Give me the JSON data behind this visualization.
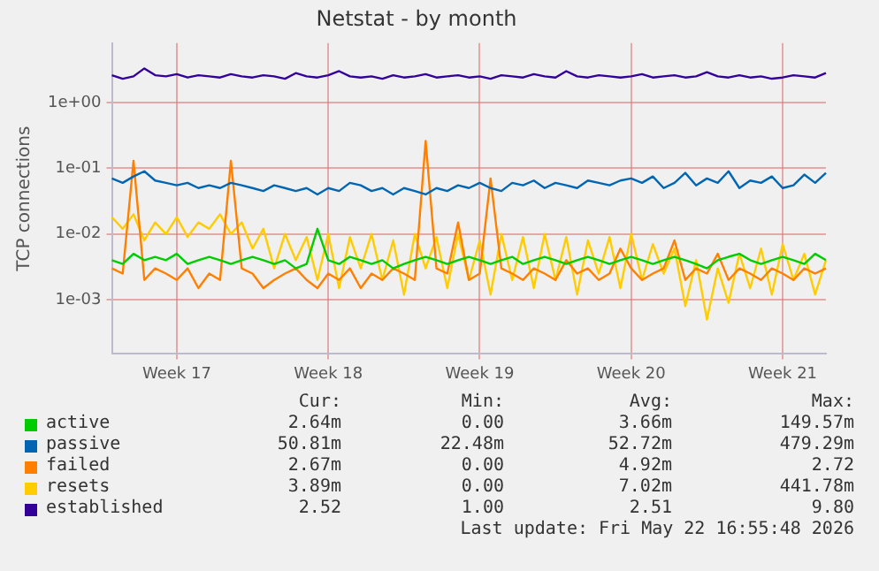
{
  "chart_data": {
    "type": "line",
    "title": "Netstat - by month",
    "ylabel": "TCP connections",
    "log": true,
    "grid": true,
    "legend": "bottom",
    "marker": "none",
    "line_style": "solid",
    "ylim": [
      0.00015,
      8
    ],
    "yticks": [
      {
        "value": 0.001,
        "label": "1e-03"
      },
      {
        "value": 0.01,
        "label": "1e-02"
      },
      {
        "value": 0.1,
        "label": "1e-01"
      },
      {
        "value": 1,
        "label": "1e+00"
      }
    ],
    "categories": [
      null,
      null,
      null,
      null,
      null,
      null,
      "Week 17",
      null,
      null,
      null,
      null,
      null,
      null,
      null,
      null,
      null,
      null,
      null,
      null,
      null,
      "Week 18",
      null,
      null,
      null,
      null,
      null,
      null,
      null,
      null,
      null,
      null,
      null,
      null,
      null,
      "Week 19",
      null,
      null,
      null,
      null,
      null,
      null,
      null,
      null,
      null,
      null,
      null,
      null,
      null,
      "Week 20",
      null,
      null,
      null,
      null,
      null,
      null,
      null,
      null,
      null,
      null,
      null,
      null,
      null,
      "Week 21",
      null,
      null,
      null,
      null
    ],
    "series": [
      {
        "name": "active",
        "color": "#00cc00",
        "values": [
          0.004,
          0.0035,
          0.005,
          0.004,
          0.0045,
          0.004,
          0.005,
          0.0035,
          0.004,
          0.0045,
          0.004,
          0.0035,
          0.004,
          0.0045,
          0.004,
          0.0035,
          0.004,
          0.003,
          0.0035,
          0.012,
          0.004,
          0.0035,
          0.0045,
          0.004,
          0.0035,
          0.004,
          0.003,
          0.0035,
          0.004,
          0.0045,
          0.004,
          0.0035,
          0.004,
          0.0045,
          0.004,
          0.0035,
          0.004,
          0.0045,
          0.0035,
          0.004,
          0.0045,
          0.004,
          0.0035,
          0.004,
          0.0045,
          0.004,
          0.0035,
          0.004,
          0.0045,
          0.004,
          0.0035,
          0.004,
          0.0045,
          0.004,
          0.0035,
          0.003,
          0.004,
          0.0045,
          0.005,
          0.004,
          0.0035,
          0.004,
          0.0045,
          0.004,
          0.0035,
          0.005,
          0.004
        ]
      },
      {
        "name": "passive",
        "color": "#0066b3",
        "values": [
          0.07,
          0.06,
          0.075,
          0.09,
          0.065,
          0.06,
          0.055,
          0.06,
          0.05,
          0.055,
          0.05,
          0.06,
          0.055,
          0.05,
          0.045,
          0.055,
          0.05,
          0.045,
          0.05,
          0.04,
          0.05,
          0.045,
          0.06,
          0.055,
          0.045,
          0.05,
          0.04,
          0.05,
          0.045,
          0.04,
          0.05,
          0.045,
          0.055,
          0.05,
          0.06,
          0.05,
          0.045,
          0.06,
          0.055,
          0.065,
          0.05,
          0.06,
          0.055,
          0.05,
          0.065,
          0.06,
          0.055,
          0.065,
          0.07,
          0.06,
          0.075,
          0.05,
          0.06,
          0.085,
          0.055,
          0.07,
          0.06,
          0.09,
          0.05,
          0.065,
          0.06,
          0.075,
          0.05,
          0.055,
          0.08,
          0.06,
          0.085
        ]
      },
      {
        "name": "failed",
        "color": "#ff8000",
        "values": [
          0.003,
          0.0025,
          0.13,
          0.002,
          0.003,
          0.0025,
          0.002,
          0.003,
          0.0015,
          0.0025,
          0.002,
          0.13,
          0.003,
          0.0025,
          0.0015,
          0.002,
          0.0025,
          0.003,
          0.002,
          0.0015,
          0.0025,
          0.002,
          0.003,
          0.0015,
          0.0025,
          0.002,
          0.003,
          0.0025,
          0.002,
          0.26,
          0.003,
          0.0025,
          0.015,
          0.002,
          0.0025,
          0.07,
          0.003,
          0.0025,
          0.002,
          0.003,
          0.0025,
          0.002,
          0.004,
          0.0025,
          0.003,
          0.002,
          0.0025,
          0.006,
          0.003,
          0.002,
          0.0025,
          0.003,
          0.008,
          0.002,
          0.003,
          0.0025,
          0.005,
          0.002,
          0.003,
          0.0025,
          0.002,
          0.003,
          0.0025,
          0.002,
          0.003,
          0.0025,
          0.003
        ]
      },
      {
        "name": "resets",
        "color": "#ffcc00",
        "values": [
          0.018,
          0.012,
          0.02,
          0.008,
          0.015,
          0.01,
          0.018,
          0.009,
          0.015,
          0.012,
          0.02,
          0.01,
          0.015,
          0.006,
          0.012,
          0.003,
          0.01,
          0.004,
          0.009,
          0.002,
          0.01,
          0.0015,
          0.009,
          0.003,
          0.01,
          0.002,
          0.008,
          0.0012,
          0.01,
          0.003,
          0.009,
          0.0015,
          0.01,
          0.002,
          0.008,
          0.0012,
          0.01,
          0.002,
          0.009,
          0.0015,
          0.01,
          0.002,
          0.009,
          0.0012,
          0.008,
          0.0025,
          0.009,
          0.0015,
          0.01,
          0.002,
          0.007,
          0.0025,
          0.006,
          0.0008,
          0.004,
          0.0005,
          0.003,
          0.0009,
          0.005,
          0.0015,
          0.006,
          0.0012,
          0.007,
          0.002,
          0.005,
          0.0012,
          0.004
        ]
      },
      {
        "name": "established",
        "color": "#330099",
        "values": [
          2.6,
          2.3,
          2.5,
          3.3,
          2.6,
          2.5,
          2.7,
          2.4,
          2.6,
          2.5,
          2.4,
          2.7,
          2.5,
          2.4,
          2.6,
          2.5,
          2.3,
          2.8,
          2.5,
          2.4,
          2.6,
          3.0,
          2.5,
          2.4,
          2.5,
          2.3,
          2.6,
          2.4,
          2.5,
          2.7,
          2.4,
          2.5,
          2.6,
          2.4,
          2.5,
          2.3,
          2.6,
          2.5,
          2.4,
          2.7,
          2.5,
          2.4,
          3.0,
          2.5,
          2.4,
          2.6,
          2.5,
          2.4,
          2.5,
          2.7,
          2.4,
          2.5,
          2.6,
          2.4,
          2.5,
          2.9,
          2.5,
          2.4,
          2.6,
          2.4,
          2.5,
          2.3,
          2.4,
          2.6,
          2.5,
          2.4,
          2.8
        ]
      }
    ],
    "annotations": [
      "Cur:",
      "Min:",
      "Avg:",
      "Max:",
      "2.64m",
      "0.00",
      "3.66m",
      "149.57m",
      "50.81m",
      "22.48m",
      "52.72m",
      "479.29m",
      "2.67m",
      "0.00",
      "4.92m",
      "2.72",
      "3.89m",
      "0.00",
      "7.02m",
      "441.78m",
      "2.52",
      "1.00",
      "2.51",
      "9.80",
      "Last update: Fri May 22 16:55:48 2026"
    ]
  }
}
